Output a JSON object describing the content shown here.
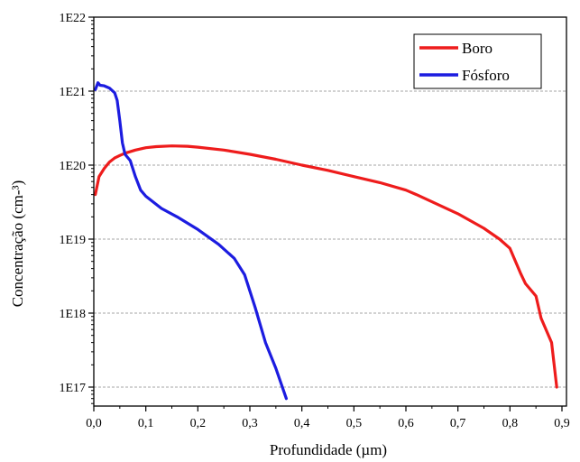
{
  "chart_data": {
    "type": "line",
    "title": "",
    "xlabel": "Profundidade (µm)",
    "ylabel": "Concentração (cm-³)",
    "xlim": [
      0.0,
      0.9
    ],
    "ylim": [
      1e+17,
      1e+22
    ],
    "yscale": "log",
    "grid": "horizontal dashed at major y ticks",
    "legend_position": "top-right",
    "x_ticks": [
      "0,0",
      "0,1",
      "0,2",
      "0,3",
      "0,4",
      "0,5",
      "0,6",
      "0,7",
      "0,8",
      "0,9"
    ],
    "y_ticks": [
      "1E17",
      "1E18",
      "1E19",
      "1E20",
      "1E21",
      "1E22"
    ],
    "series": [
      {
        "name": "Boro",
        "color": "#ee1c1c",
        "x": [
          0.003,
          0.01,
          0.02,
          0.03,
          0.04,
          0.05,
          0.06,
          0.08,
          0.1,
          0.12,
          0.15,
          0.18,
          0.2,
          0.25,
          0.3,
          0.35,
          0.4,
          0.45,
          0.5,
          0.55,
          0.6,
          0.62,
          0.65,
          0.7,
          0.75,
          0.78,
          0.8,
          0.82,
          0.83,
          0.85,
          0.86,
          0.88,
          0.89
        ],
        "y": [
          4e+19,
          7e+19,
          9e+19,
          1.1e+20,
          1.25e+20,
          1.35e+20,
          1.45e+20,
          1.6e+20,
          1.72e+20,
          1.78e+20,
          1.82e+20,
          1.8e+20,
          1.75e+20,
          1.6e+20,
          1.4e+20,
          1.2e+20,
          1e+20,
          8.5e+19,
          7e+19,
          5.8e+19,
          4.6e+19,
          4e+19,
          3.2e+19,
          2.2e+19,
          1.4e+19,
          1e+19,
          7.5e+18,
          3.5e+18,
          2.5e+18,
          1.7e+18,
          8.5e+17,
          4e+17,
          1e+17
        ]
      },
      {
        "name": "Fósforo",
        "color": "#1c1ce0",
        "x": [
          0.003,
          0.008,
          0.012,
          0.02,
          0.03,
          0.04,
          0.045,
          0.05,
          0.055,
          0.06,
          0.07,
          0.08,
          0.09,
          0.1,
          0.13,
          0.16,
          0.2,
          0.24,
          0.27,
          0.29,
          0.31,
          0.33,
          0.35,
          0.37
        ],
        "y": [
          1.05e+21,
          1.3e+21,
          1.2e+21,
          1.18e+21,
          1.1e+21,
          9.5e+20,
          7.5e+20,
          4e+20,
          2e+20,
          1.4e+20,
          1.15e+20,
          7e+19,
          4.6e+19,
          3.8e+19,
          2.6e+19,
          2e+19,
          1.35e+19,
          8.5e+18,
          5.5e+18,
          3.3e+18,
          1.2e+18,
          4e+17,
          1.8e+17,
          7e+16
        ]
      }
    ]
  }
}
